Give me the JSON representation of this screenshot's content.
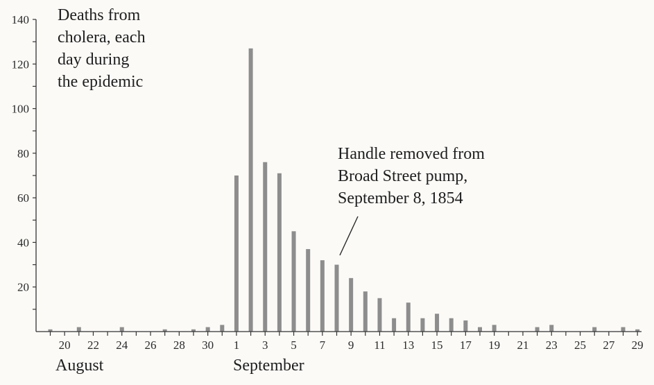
{
  "chart_data": {
    "type": "bar",
    "title": "Deaths from cholera, each day during the epidemic",
    "title_lines": [
      "Deaths from",
      "cholera, each",
      "day during",
      "the epidemic"
    ],
    "ylim": [
      0,
      140
    ],
    "y_ticks": [
      "20",
      "40",
      "60",
      "80",
      "100",
      "120",
      "140"
    ],
    "x_tick_labels": [
      "20",
      "22",
      "24",
      "26",
      "28",
      "30",
      "1",
      "3",
      "5",
      "7",
      "9",
      "11",
      "13",
      "15",
      "17",
      "19",
      "21",
      "23",
      "25",
      "27",
      "29"
    ],
    "month_labels": [
      "August",
      "September"
    ],
    "annotation": {
      "text_lines": [
        "Handle removed from",
        "Broad Street pump,",
        "September 8, 1854"
      ],
      "points_to": "Sep 8"
    },
    "categories": [
      "Aug 19",
      "Aug 20",
      "Aug 21",
      "Aug 22",
      "Aug 23",
      "Aug 24",
      "Aug 25",
      "Aug 26",
      "Aug 27",
      "Aug 28",
      "Aug 29",
      "Aug 30",
      "Aug 31",
      "Sep 1",
      "Sep 2",
      "Sep 3",
      "Sep 4",
      "Sep 5",
      "Sep 6",
      "Sep 7",
      "Sep 8",
      "Sep 9",
      "Sep 10",
      "Sep 11",
      "Sep 12",
      "Sep 13",
      "Sep 14",
      "Sep 15",
      "Sep 16",
      "Sep 17",
      "Sep 18",
      "Sep 19",
      "Sep 20",
      "Sep 21",
      "Sep 22",
      "Sep 23",
      "Sep 24",
      "Sep 25",
      "Sep 26",
      "Sep 27",
      "Sep 28",
      "Sep 29"
    ],
    "values": [
      1,
      0,
      2,
      0,
      0,
      2,
      0,
      0,
      1,
      0,
      1,
      2,
      3,
      70,
      127,
      76,
      71,
      45,
      37,
      32,
      30,
      24,
      18,
      15,
      6,
      13,
      6,
      8,
      6,
      5,
      2,
      3,
      0,
      0,
      2,
      3,
      0,
      0,
      2,
      0,
      2,
      1
    ],
    "bar_color": "#8d8d8d",
    "axis_color": "#333333"
  }
}
